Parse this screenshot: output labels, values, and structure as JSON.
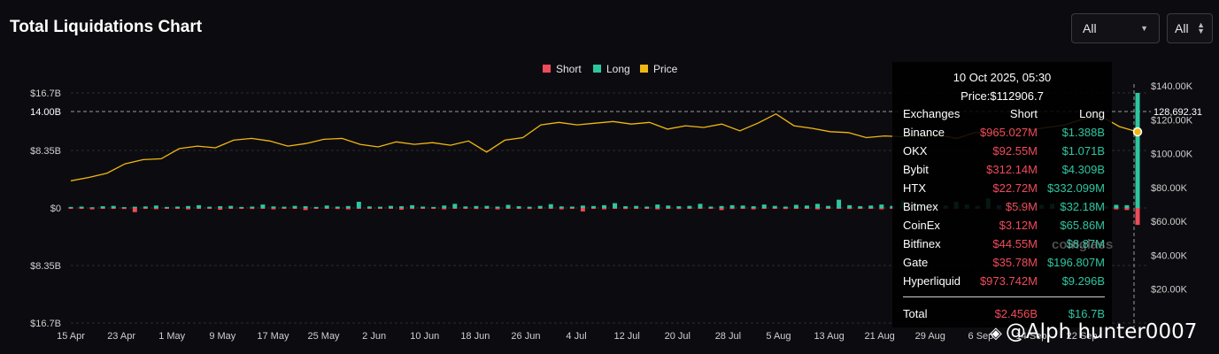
{
  "header": {
    "title": "Total Liquidations Chart",
    "select_range": "All",
    "select_exchange": "All"
  },
  "legend": [
    {
      "label": "Short",
      "color": "#ef4b5a"
    },
    {
      "label": "Long",
      "color": "#2ec6a0"
    },
    {
      "label": "Price",
      "color": "#f2b711"
    }
  ],
  "tooltip": {
    "date": "10 Oct 2025, 05:30",
    "price": "Price:$112906.7",
    "headers": {
      "exchange": "Exchanges",
      "short": "Short",
      "long": "Long"
    },
    "rows": [
      {
        "exchange": "Binance",
        "short": "$965.027M",
        "long": "$1.388B"
      },
      {
        "exchange": "OKX",
        "short": "$92.55M",
        "long": "$1.071B"
      },
      {
        "exchange": "Bybit",
        "short": "$312.14M",
        "long": "$4.309B"
      },
      {
        "exchange": "HTX",
        "short": "$22.72M",
        "long": "$332.099M"
      },
      {
        "exchange": "Bitmex",
        "short": "$5.9M",
        "long": "$32.18M"
      },
      {
        "exchange": "CoinEx",
        "short": "$3.12M",
        "long": "$65.86M"
      },
      {
        "exchange": "Bitfinex",
        "short": "$44.55M",
        "long": "$8.87M"
      },
      {
        "exchange": "Gate",
        "short": "$35.78M",
        "long": "$196.807M"
      },
      {
        "exchange": "Hyperliquid",
        "short": "$973.742M",
        "long": "$9.296B"
      }
    ],
    "total": {
      "label": "Total",
      "short": "$2.456B",
      "long": "$16.7B"
    }
  },
  "watermark": "coinglass",
  "credit": "@Alph  hunter0007",
  "chart_data": {
    "type": "bar",
    "x_ticks": [
      "15 Apr",
      "23 Apr",
      "1 May",
      "9 May",
      "17 May",
      "25 May",
      "2 Jun",
      "10 Jun",
      "18 Jun",
      "26 Jun",
      "4 Jul",
      "12 Jul",
      "20 Jul",
      "28 Jul",
      "5 Aug",
      "13 Aug",
      "21 Aug",
      "29 Aug",
      "6 Sep",
      "14 Sep",
      "22 Sep"
    ],
    "y_left_ticks": [
      "$16.7B",
      "$8.35B",
      "$0",
      "$8.35B",
      "$16.7B"
    ],
    "y_left_marker": "14.00B",
    "y_right_ticks": [
      "$140.00K",
      "$120.00K",
      "$100.00K",
      "$80.00K",
      "$60.00K",
      "$40.00K",
      "$20.00K"
    ],
    "y_right_marker": "128,692.31",
    "ylim_left": [
      -16.7,
      16.7
    ],
    "ylim_right": [
      0,
      150000
    ],
    "series": [
      {
        "name": "Short",
        "unit": "USD B",
        "values": [
          0.1,
          0.05,
          0.2,
          0.12,
          0.08,
          0.15,
          0.6,
          0.1,
          0.18,
          0.05,
          0.12,
          0.2,
          0.08,
          0.1,
          0.25,
          0.12,
          0.05,
          0.15,
          0.1,
          0.2,
          0.08,
          0.12,
          0.3,
          0.1,
          0.05,
          0.15,
          0.2,
          0.1,
          0.08,
          0.12,
          0.1,
          0.25,
          0.15,
          0.1,
          0.05,
          0.2,
          0.12,
          0.08,
          0.15,
          0.1,
          0.2,
          0.12,
          0.05,
          0.15,
          0.1,
          0.08,
          0.2,
          0.12,
          0.5,
          0.1,
          0.2,
          0.08,
          0.15,
          0.12,
          0.1,
          0.2,
          0.05,
          0.15,
          0.12,
          0.1,
          0.08,
          0.3,
          0.15,
          0.1,
          0.2,
          0.12,
          0.05,
          0.15,
          0.1,
          0.08,
          0.2,
          0.12,
          0.1,
          0.15,
          0.05,
          0.1,
          0.2,
          0.12,
          0.08,
          0.15,
          0.1,
          0.2,
          0.12,
          0.05,
          0.15,
          0.1,
          0.08,
          0.2,
          0.12,
          0.4,
          0.15,
          0.1,
          0.05,
          0.2,
          0.12,
          0.08,
          0.15,
          0.1,
          0.2,
          0.3,
          2.456
        ]
      },
      {
        "name": "Long",
        "unit": "USD B",
        "values": [
          0.15,
          0.2,
          0.1,
          0.25,
          0.3,
          0.12,
          0.18,
          0.22,
          0.35,
          0.15,
          0.2,
          0.28,
          0.4,
          0.18,
          0.25,
          0.3,
          0.15,
          0.2,
          0.5,
          0.22,
          0.18,
          0.3,
          0.25,
          0.15,
          0.35,
          0.2,
          0.28,
          0.9,
          0.22,
          0.18,
          0.3,
          0.25,
          0.4,
          0.2,
          0.15,
          0.35,
          0.6,
          0.22,
          0.28,
          0.3,
          0.2,
          0.45,
          0.25,
          0.18,
          0.3,
          0.55,
          0.22,
          0.2,
          0.35,
          0.28,
          0.4,
          0.7,
          0.25,
          0.3,
          0.2,
          0.5,
          0.35,
          0.25,
          0.3,
          0.6,
          0.2,
          0.28,
          0.4,
          0.35,
          0.25,
          0.5,
          0.3,
          0.2,
          0.45,
          0.35,
          0.6,
          0.3,
          1.2,
          0.4,
          0.25,
          0.35,
          0.5,
          0.3,
          1.1,
          0.45,
          0.3,
          0.6,
          0.35,
          0.9,
          0.5,
          0.3,
          1.4,
          0.4,
          0.6,
          0.5,
          0.35,
          0.45,
          0.6,
          0.3,
          0.4,
          0.5,
          0.35,
          0.3,
          0.45,
          0.4,
          16.7
        ]
      },
      {
        "name": "Price",
        "unit": "USD",
        "values": [
          84000,
          86000,
          88500,
          94000,
          96500,
          97000,
          103000,
          104500,
          103500,
          108000,
          109000,
          107500,
          104500,
          106000,
          108500,
          109000,
          105500,
          104000,
          107000,
          105500,
          106500,
          105000,
          107500,
          101000,
          108000,
          109500,
          117000,
          118500,
          117000,
          118000,
          119000,
          117500,
          118500,
          114500,
          116500,
          115500,
          117500,
          113500,
          118000,
          123500,
          116500,
          115000,
          113000,
          112500,
          109500,
          110500,
          110000,
          111500,
          111000,
          109000,
          112500,
          112000,
          113500,
          114000,
          115500,
          117000,
          120500,
          122000,
          116000,
          112906.7
        ]
      }
    ]
  }
}
